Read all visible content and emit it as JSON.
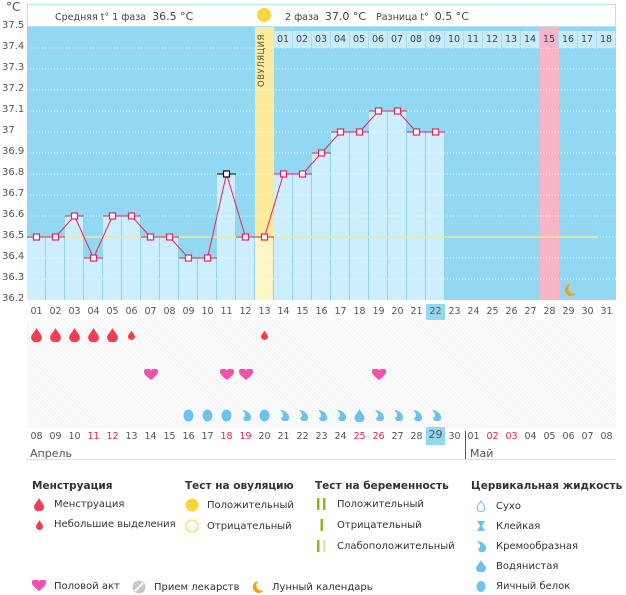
{
  "header": {
    "unit": "°C",
    "phase1_label": "Средняя t° 1 фаза",
    "phase1_value": "36.5 °C",
    "phase2_label": "2 фаза",
    "phase2_value": "37.0 °C",
    "diff_label": "Разница t°",
    "diff_value": "0.5 °C",
    "ovulation_label": "ОВУЛЯЦИЯ"
  },
  "chart_data": {
    "type": "line",
    "title": "",
    "xlabel": "",
    "ylabel": "°C",
    "ylim": [
      36.2,
      37.5
    ],
    "yticks": [
      "37.5",
      "37.4",
      "37.3",
      "37.2",
      "37.1",
      "37",
      "36.9",
      "36.8",
      "36.7",
      "36.6",
      "36.5",
      "36.4",
      "36.3",
      "36.2"
    ],
    "cycle_days": [
      "01",
      "02",
      "03",
      "04",
      "05",
      "06",
      "07",
      "08",
      "09",
      "10",
      "11",
      "12",
      "13",
      "14",
      "15",
      "16",
      "17",
      "18",
      "19",
      "20",
      "21",
      "22",
      "23",
      "24",
      "25",
      "26",
      "27",
      "28",
      "29",
      "30",
      "31"
    ],
    "series": [
      {
        "name": "Базальная температура",
        "color": "#e8245a",
        "values": [
          36.5,
          36.5,
          36.6,
          36.4,
          36.6,
          36.6,
          36.5,
          36.5,
          36.4,
          36.4,
          36.8,
          36.5,
          36.5,
          36.8,
          36.8,
          36.9,
          37.0,
          37.0,
          37.1,
          37.1,
          37.0,
          37.0
        ]
      }
    ],
    "coverline": 36.5,
    "coverline_color": "#f5e98a",
    "highlighted_point_day": 11,
    "ovulation_day": 13,
    "post_ovulation_days": [
      "01",
      "02",
      "03",
      "04",
      "05",
      "06",
      "07",
      "08",
      "09",
      "10",
      "11",
      "12",
      "13",
      "14",
      "15",
      "16",
      "17",
      "18"
    ],
    "expected_period_day": 28,
    "current_day": 22,
    "lunar_day": 29,
    "grid": true
  },
  "dates": [
    {
      "d": "08"
    },
    {
      "d": "09"
    },
    {
      "d": "10"
    },
    {
      "d": "11",
      "weekend": true
    },
    {
      "d": "12",
      "weekend": true
    },
    {
      "d": "13"
    },
    {
      "d": "14"
    },
    {
      "d": "15"
    },
    {
      "d": "16"
    },
    {
      "d": "17"
    },
    {
      "d": "18",
      "weekend": true
    },
    {
      "d": "19",
      "weekend": true
    },
    {
      "d": "20"
    },
    {
      "d": "21"
    },
    {
      "d": "22"
    },
    {
      "d": "23"
    },
    {
      "d": "24"
    },
    {
      "d": "25",
      "weekend": true
    },
    {
      "d": "26",
      "weekend": true
    },
    {
      "d": "27"
    },
    {
      "d": "28"
    },
    {
      "d": "29",
      "today": true
    },
    {
      "d": "30"
    },
    {
      "d": "01"
    },
    {
      "d": "02",
      "weekend": true
    },
    {
      "d": "03",
      "weekend": true
    },
    {
      "d": "04"
    },
    {
      "d": "05"
    },
    {
      "d": "06"
    },
    {
      "d": "07"
    },
    {
      "d": "08"
    }
  ],
  "months": {
    "first": "Апрель",
    "second": "Май"
  },
  "observations": {
    "menstruation": {
      "1": "heavy",
      "2": "heavy",
      "3": "heavy",
      "4": "heavy",
      "5": "heavy",
      "6": "light",
      "13": "light"
    },
    "intercourse": [
      7,
      11,
      12,
      19
    ],
    "cervical_fluid": {
      "9": "egg-white",
      "10": "egg-white",
      "11": "egg-white",
      "12": "creamy",
      "13": "egg-white",
      "14": "creamy",
      "15": "creamy",
      "16": "creamy",
      "17": "creamy",
      "18": "watery",
      "19": "creamy",
      "20": "creamy",
      "21": "creamy",
      "22": "creamy"
    }
  },
  "colors": {
    "plot_bg": "#92d8f2",
    "bar": "#cdeefc",
    "line": "#e8245a",
    "ovulation": "#fbeb9a",
    "period": "#f9b4c8",
    "blood": "#f04050",
    "heart": "#f550b0",
    "fluid": "#6ec2ee",
    "moon": "#f5a010",
    "test_green": "#8ab81a"
  },
  "legend": {
    "menstruation": {
      "title": "Менструация",
      "items": [
        "Менструация",
        "Небольшие выделения"
      ]
    },
    "ovulation_test": {
      "title": "Тест на овуляцию",
      "items": [
        "Положительный",
        "Отрицательный"
      ]
    },
    "pregnancy_test": {
      "title": "Тест на беременность",
      "items": [
        "Положительный",
        "Отрицательный",
        "Слабоположительный"
      ]
    },
    "cervical_fluid": {
      "title": "Цервикальная жидкость",
      "items": [
        "Сухо",
        "Клейкая",
        "Кремообразная",
        "Водянистая",
        "Яичный белок"
      ]
    },
    "other": [
      "Половой акт",
      "Прием лекарств",
      "Лунный календарь"
    ]
  }
}
